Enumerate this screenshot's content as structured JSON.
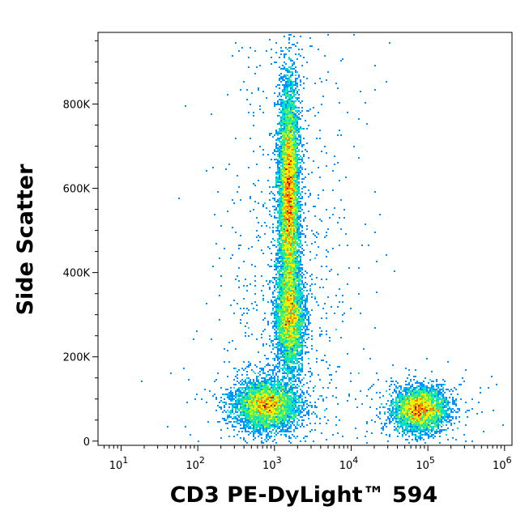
{
  "chart_data": {
    "type": "scatter",
    "title": "",
    "xlabel": "CD3 PE-DyLight™ 594",
    "ylabel": "Side Scatter",
    "x_scale": "log",
    "xlim": [
      5,
      1250000
    ],
    "ylim": [
      -10000,
      970000
    ],
    "x_ticks": [
      {
        "value": 10,
        "base": "10",
        "exp": "1"
      },
      {
        "value": 100,
        "base": "10",
        "exp": "2"
      },
      {
        "value": 1000,
        "base": "10",
        "exp": "3"
      },
      {
        "value": 10000,
        "base": "10",
        "exp": "4"
      },
      {
        "value": 100000,
        "base": "10",
        "exp": "5"
      },
      {
        "value": 1000000,
        "base": "10",
        "exp": "6"
      }
    ],
    "y_ticks": [
      {
        "value": 0,
        "label": "0"
      },
      {
        "value": 200000,
        "label": "200K"
      },
      {
        "value": 400000,
        "label": "400K"
      },
      {
        "value": 600000,
        "label": "600K"
      },
      {
        "value": 800000,
        "label": "800K"
      }
    ],
    "colormap": [
      "#0000d8",
      "#0090ff",
      "#00e0d0",
      "#50f060",
      "#f0f000",
      "#ff8000",
      "#e00000"
    ],
    "populations": [
      {
        "x_center": 800,
        "x_sd_decades": 0.2,
        "y_center": 85000,
        "y_sd": 28000,
        "weight": 0.2
      },
      {
        "x_center": 1600,
        "x_sd_decades": 0.09,
        "y_center": 290000,
        "y_sd": 60000,
        "weight": 0.17
      },
      {
        "x_center": 1550,
        "x_sd_decades": 0.065,
        "y_center": 580000,
        "y_sd": 130000,
        "weight": 0.37
      },
      {
        "x_center": 80000,
        "x_sd_decades": 0.17,
        "y_center": 75000,
        "y_sd": 25000,
        "weight": 0.18
      }
    ]
  }
}
